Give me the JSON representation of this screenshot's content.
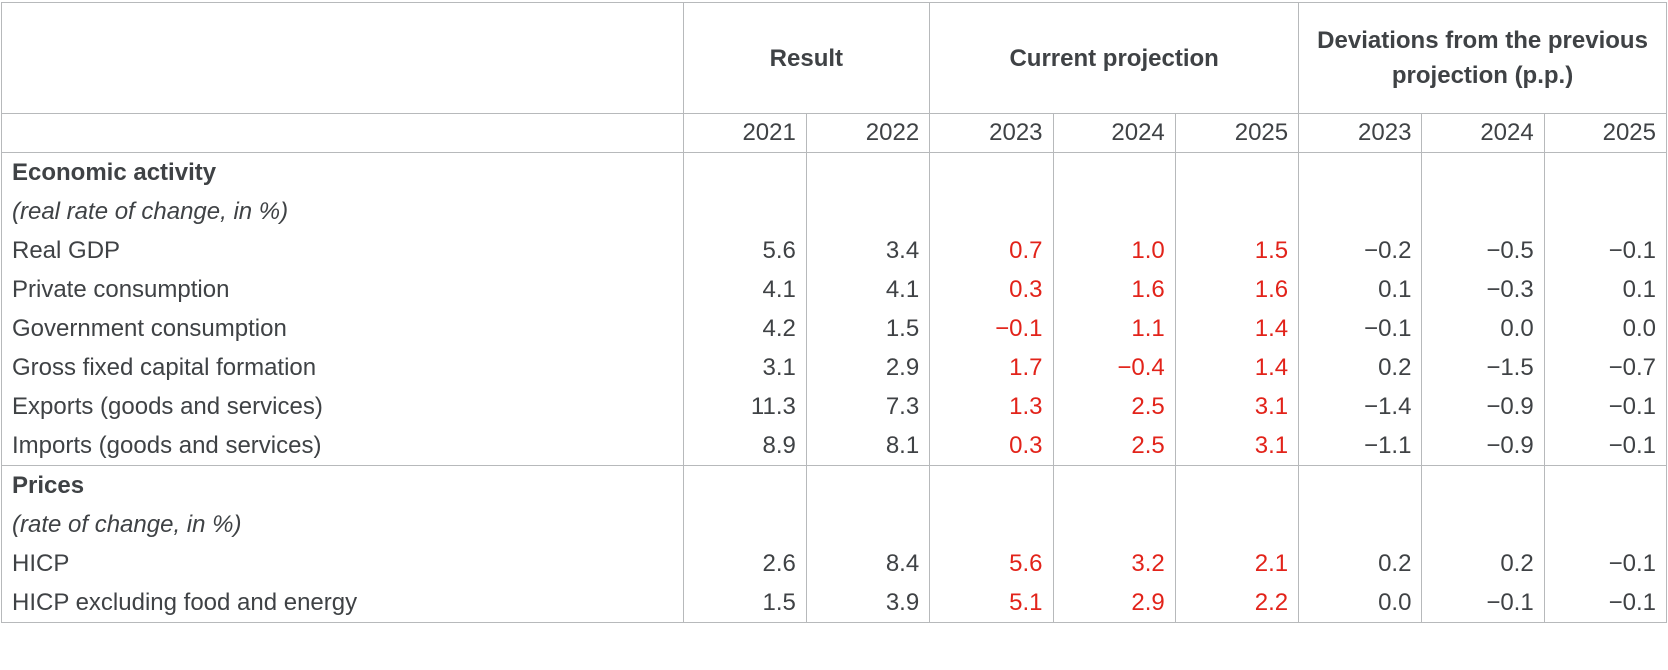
{
  "header": {
    "result": "Result",
    "current_projection": "Current projection",
    "deviations": "Deviations from the previous projection (p.p.)"
  },
  "years": [
    "2021",
    "2022",
    "2023",
    "2024",
    "2025",
    "2023",
    "2024",
    "2025"
  ],
  "sections": [
    {
      "title": "Economic activity",
      "subtitle": "(real rate of change, in %)",
      "rows": [
        {
          "label": "Real GDP",
          "values": [
            "5.6",
            "3.4",
            "0.7",
            "1.0",
            "1.5",
            "−0.2",
            "−0.5",
            "−0.1"
          ]
        },
        {
          "label": "Private consumption",
          "values": [
            "4.1",
            "4.1",
            "0.3",
            "1.6",
            "1.6",
            "0.1",
            "−0.3",
            "0.1"
          ]
        },
        {
          "label": "Government consumption",
          "values": [
            "4.2",
            "1.5",
            "−0.1",
            "1.1",
            "1.4",
            "−0.1",
            "0.0",
            "0.0"
          ]
        },
        {
          "label": "Gross fixed capital formation",
          "values": [
            "3.1",
            "2.9",
            "1.7",
            "−0.4",
            "1.4",
            "0.2",
            "−1.5",
            "−0.7"
          ]
        },
        {
          "label": "Exports (goods and services)",
          "values": [
            "11.3",
            "7.3",
            "1.3",
            "2.5",
            "3.1",
            "−1.4",
            "−0.9",
            "−0.1"
          ]
        },
        {
          "label": "Imports (goods and services)",
          "values": [
            "8.9",
            "8.1",
            "0.3",
            "2.5",
            "3.1",
            "−1.1",
            "−0.9",
            "−0.1"
          ]
        }
      ]
    },
    {
      "title": "Prices",
      "subtitle": "(rate of change, in %)",
      "rows": [
        {
          "label": "HICP",
          "values": [
            "2.6",
            "8.4",
            "5.6",
            "3.2",
            "2.1",
            "0.2",
            "0.2",
            "−0.1"
          ]
        },
        {
          "label": "HICP excluding food and energy",
          "values": [
            "1.5",
            "3.9",
            "5.1",
            "2.9",
            "2.2",
            "0.0",
            "−0.1",
            "−0.1"
          ]
        }
      ]
    }
  ],
  "colors": {
    "projection": "#e2231a",
    "text": "#3f4245",
    "grid": "#b7b9bb"
  }
}
